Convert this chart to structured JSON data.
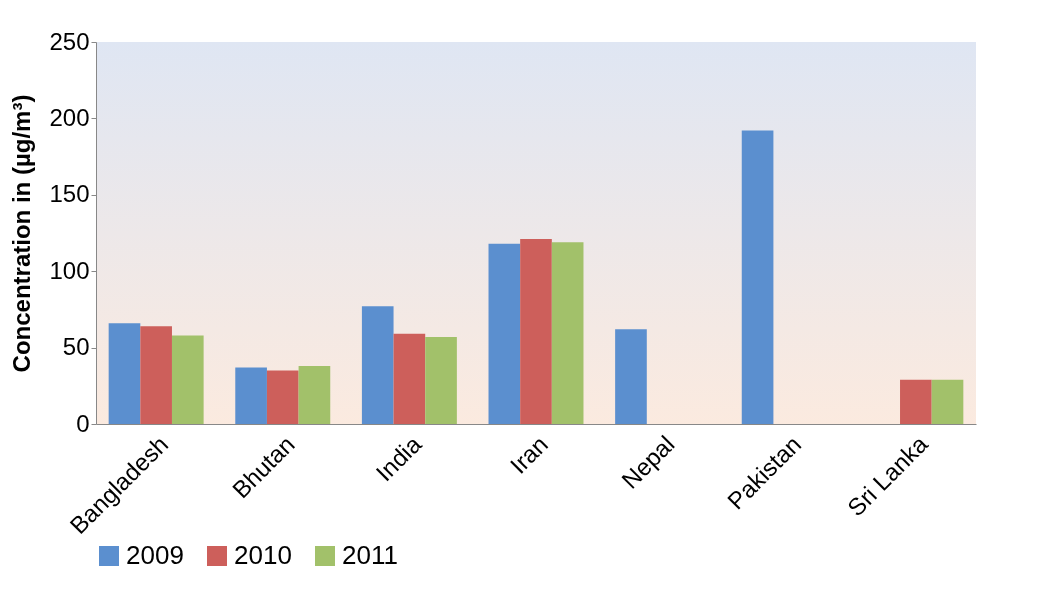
{
  "chart_data": {
    "type": "bar",
    "ylabel": "Concentration in (µg/m³)",
    "categories": [
      "Bangladesh",
      "Bhutan",
      "India",
      "Iran",
      "Nepal",
      "Pakistan",
      "Sri Lanka"
    ],
    "series": [
      {
        "name": "2009",
        "color": "#5b8fcf",
        "values": [
          66,
          37,
          77,
          118,
          62,
          192,
          null
        ]
      },
      {
        "name": "2010",
        "color": "#cd5f5b",
        "values": [
          64,
          35,
          59,
          121,
          null,
          null,
          29
        ]
      },
      {
        "name": "2011",
        "color": "#a2c16a",
        "values": [
          58,
          38,
          57,
          119,
          null,
          null,
          29
        ]
      }
    ],
    "ylim": [
      0,
      250
    ],
    "yticks": [
      0,
      50,
      100,
      150,
      200,
      250
    ],
    "grid": false,
    "legend": "bottom"
  }
}
